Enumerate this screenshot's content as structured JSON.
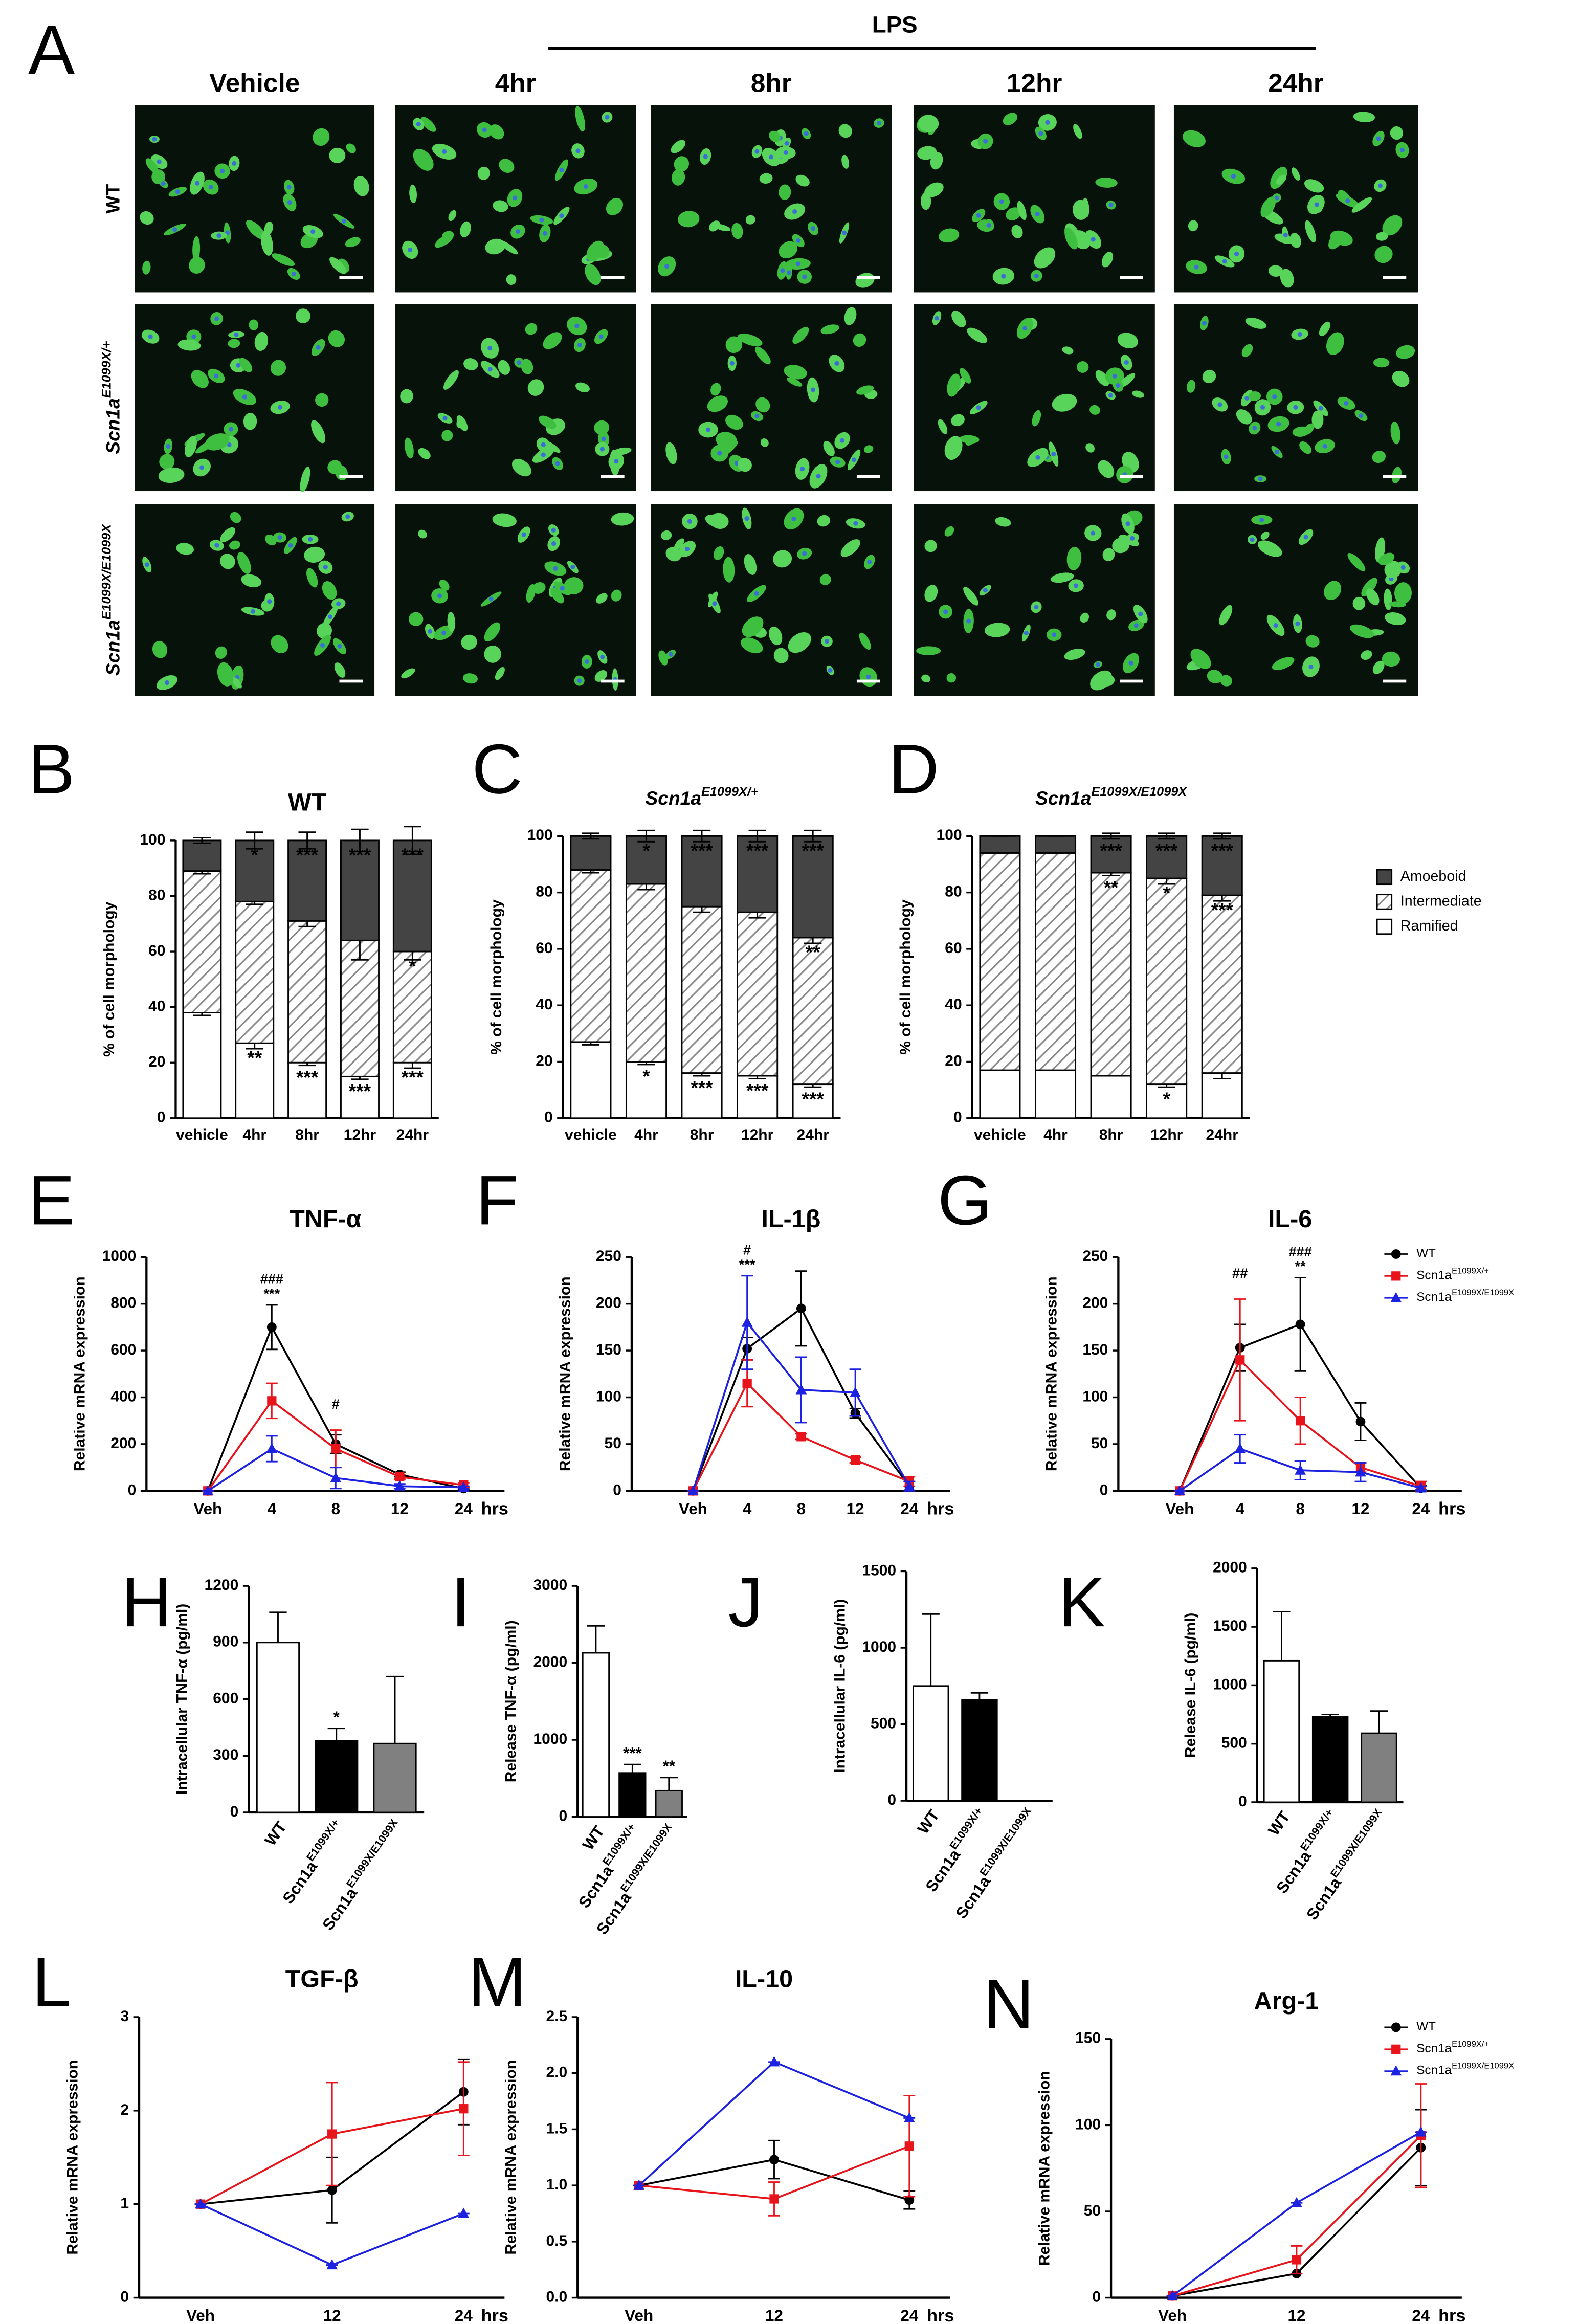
{
  "panel_labels": [
    "A",
    "B",
    "C",
    "D",
    "E",
    "F",
    "G",
    "H",
    "I",
    "J",
    "K",
    "L",
    "M",
    "N"
  ],
  "micrographs": {
    "lps_label": "LPS",
    "columns": [
      "Vehicle",
      "4hr",
      "8hr",
      "12hr",
      "24hr"
    ],
    "rows": [
      {
        "text": "WT"
      },
      {
        "text": "Scn1a",
        "sup": "E1099X/+"
      },
      {
        "text": "Scn1a",
        "sup": "E1099X/E1099X"
      }
    ]
  },
  "chart_data": [
    {
      "type": "stacked_bar",
      "title": "WT",
      "ylabel": "% of cell morphology",
      "categories": [
        "vehicle",
        "4hr",
        "8hr",
        "12hr",
        "24hr"
      ],
      "ylim": [
        0,
        100
      ],
      "yticks": [
        0,
        20,
        40,
        60,
        80,
        100
      ],
      "series": [
        {
          "name": "Ramified",
          "color": "#ffffff",
          "values": [
            38,
            27,
            20,
            15,
            20
          ],
          "errors": [
            1,
            2,
            1,
            1,
            2
          ],
          "annotations": [
            null,
            "**",
            "***",
            "***",
            "***"
          ]
        },
        {
          "name": "Intermediate",
          "color": "#888888",
          "pattern": "hatch",
          "values": [
            51,
            51,
            51,
            49,
            40
          ],
          "errors": [
            1,
            1,
            2,
            7,
            3
          ],
          "annotations": [
            null,
            null,
            null,
            null,
            "*"
          ]
        },
        {
          "name": "Amoeboid",
          "color": "#444444",
          "values": [
            11,
            22,
            29,
            36,
            40
          ],
          "errors": [
            1,
            3,
            3,
            4,
            5
          ],
          "annotations": [
            null,
            "*",
            "***",
            "***",
            "***"
          ]
        }
      ]
    },
    {
      "type": "stacked_bar",
      "title": "Scn1a",
      "title_sup": "E1099X/+",
      "ylabel": "% of cell morphology",
      "categories": [
        "vehicle",
        "4hr",
        "8hr",
        "12hr",
        "24hr"
      ],
      "ylim": [
        0,
        100
      ],
      "yticks": [
        0,
        20,
        40,
        60,
        80,
        100
      ],
      "series": [
        {
          "name": "Ramified",
          "color": "#ffffff",
          "values": [
            27,
            20,
            16,
            15,
            12
          ],
          "errors": [
            1,
            1,
            1,
            1,
            1
          ],
          "annotations": [
            null,
            "*",
            "***",
            "***",
            "***"
          ]
        },
        {
          "name": "Intermediate",
          "color": "#888888",
          "pattern": "hatch",
          "values": [
            61,
            63,
            59,
            58,
            52
          ],
          "errors": [
            1,
            2,
            2,
            2,
            2
          ],
          "annotations": [
            null,
            null,
            null,
            null,
            "**"
          ]
        },
        {
          "name": "Amoeboid",
          "color": "#444444",
          "values": [
            12,
            17,
            25,
            27,
            36
          ],
          "errors": [
            1,
            2,
            2,
            2,
            2
          ],
          "annotations": [
            null,
            "*",
            "***",
            "***",
            "***"
          ]
        }
      ]
    },
    {
      "type": "stacked_bar",
      "title": "Scn1a",
      "title_sup": "E1099X/E1099X",
      "ylabel": "% of cell morphology",
      "categories": [
        "vehicle",
        "4hr",
        "8hr",
        "12hr",
        "24hr"
      ],
      "ylim": [
        0,
        100
      ],
      "yticks": [
        0,
        20,
        40,
        60,
        80,
        100
      ],
      "legend": true,
      "series": [
        {
          "name": "Ramified",
          "color": "#ffffff",
          "values": [
            17,
            17,
            15,
            12,
            16
          ],
          "errors": [
            0,
            0,
            0,
            1,
            2
          ],
          "annotations": [
            null,
            null,
            null,
            "*",
            null
          ]
        },
        {
          "name": "Intermediate",
          "color": "#888888",
          "pattern": "hatch",
          "values": [
            77,
            77,
            72,
            73,
            63
          ],
          "errors": [
            0,
            0,
            1,
            2,
            2
          ],
          "annotations": [
            null,
            null,
            "**",
            "*",
            "***"
          ]
        },
        {
          "name": "Amoeboid",
          "color": "#444444",
          "values": [
            6,
            6,
            13,
            15,
            21
          ],
          "errors": [
            0,
            0,
            1,
            1,
            1
          ],
          "annotations": [
            null,
            null,
            "***",
            "***",
            "***"
          ]
        }
      ]
    },
    {
      "type": "line",
      "title": "TNF-α",
      "ylabel": "Relative mRNA expression",
      "x_label": "hrs",
      "categories": [
        "Veh",
        "4",
        "8",
        "12",
        "24"
      ],
      "ylim": [
        0,
        1000
      ],
      "yticks": [
        0,
        200,
        400,
        600,
        800,
        1000
      ],
      "top_annotations": [
        [
          null,
          "###",
          "#",
          null,
          null
        ],
        [
          null,
          "***",
          null,
          null,
          null
        ]
      ],
      "series": [
        {
          "name": "WT",
          "color": "#000000",
          "marker": "circle",
          "values": [
            0,
            700,
            200,
            70,
            10
          ],
          "errors": [
            0,
            95,
            40,
            10,
            5
          ]
        },
        {
          "name": "Scn1a",
          "name_sup": "E1099X/+",
          "color": "#e8141c",
          "marker": "square",
          "values": [
            0,
            385,
            180,
            60,
            25
          ],
          "errors": [
            0,
            75,
            80,
            10,
            10
          ]
        },
        {
          "name": "Scn1a",
          "name_sup": "E1099X/E1099X",
          "color": "#1c22e0",
          "marker": "triangle",
          "values": [
            0,
            180,
            55,
            20,
            15
          ],
          "errors": [
            0,
            55,
            45,
            10,
            5
          ]
        }
      ]
    },
    {
      "type": "line",
      "title": "IL-1β",
      "ylabel": "Relative mRNA expression",
      "x_label": "hrs",
      "categories": [
        "Veh",
        "4",
        "8",
        "12",
        "24"
      ],
      "ylim": [
        0,
        250
      ],
      "yticks": [
        0,
        50,
        100,
        150,
        200,
        250
      ],
      "top_annotations": [
        [
          null,
          "#",
          null,
          null,
          null
        ],
        [
          null,
          "***",
          null,
          null,
          null
        ]
      ],
      "series": [
        {
          "name": "WT",
          "color": "#000000",
          "marker": "circle",
          "values": [
            0,
            152,
            195,
            83,
            5
          ],
          "errors": [
            0,
            12,
            40,
            5,
            5
          ]
        },
        {
          "name": "Scn1a",
          "name_sup": "E1099X/+",
          "color": "#e8141c",
          "marker": "square",
          "values": [
            0,
            115,
            58,
            33,
            10
          ],
          "errors": [
            0,
            25,
            3,
            3,
            5
          ]
        },
        {
          "name": "Scn1a",
          "name_sup": "E1099X/E1099X",
          "color": "#1c22e0",
          "marker": "triangle",
          "values": [
            0,
            180,
            108,
            105,
            5
          ],
          "errors": [
            0,
            50,
            35,
            25,
            5
          ]
        }
      ]
    },
    {
      "type": "line",
      "title": "IL-6",
      "ylabel": "Relative mRNA expression",
      "x_label": "hrs",
      "categories": [
        "Veh",
        "4",
        "8",
        "12",
        "24"
      ],
      "ylim": [
        0,
        250
      ],
      "yticks": [
        0,
        50,
        100,
        150,
        200,
        250
      ],
      "legend": true,
      "top_annotations": [
        [
          null,
          "##",
          "###",
          null,
          null
        ],
        [
          null,
          null,
          "**",
          null,
          null
        ]
      ],
      "series": [
        {
          "name": "WT",
          "color": "#000000",
          "marker": "circle",
          "values": [
            0,
            153,
            178,
            74,
            3
          ],
          "errors": [
            0,
            25,
            50,
            20,
            3
          ]
        },
        {
          "name": "Scn1a",
          "name_sup": "E1099X/+",
          "color": "#e8141c",
          "marker": "square",
          "values": [
            0,
            140,
            75,
            25,
            5
          ],
          "errors": [
            0,
            65,
            25,
            5,
            5
          ]
        },
        {
          "name": "Scn1a",
          "name_sup": "E1099X/E1099X",
          "color": "#1c22e0",
          "marker": "triangle",
          "values": [
            0,
            45,
            22,
            20,
            3
          ],
          "errors": [
            0,
            15,
            10,
            10,
            2
          ]
        }
      ]
    },
    {
      "type": "bar",
      "ylabel": "Intracellular TNF-α (pg/ml)",
      "categories": [
        "WT",
        "Scn1a",
        "Scn1a"
      ],
      "category_sups": [
        null,
        "E1099X/+",
        "E1099X/E1099X"
      ],
      "colors": [
        "#ffffff",
        "#000000",
        "#808080"
      ],
      "values": [
        900,
        380,
        365
      ],
      "errors": [
        160,
        65,
        355
      ],
      "annotations": [
        null,
        "*",
        null
      ],
      "ylim": [
        0,
        1200
      ],
      "yticks": [
        0,
        300,
        600,
        900,
        1200
      ]
    },
    {
      "type": "bar",
      "ylabel": "Release TNF-α (pg/ml)",
      "categories": [
        "WT",
        "Scn1a",
        "Scn1a"
      ],
      "category_sups": [
        null,
        "E1099X/+",
        "E1099X/E1099X"
      ],
      "colors": [
        "#ffffff",
        "#000000",
        "#808080"
      ],
      "values": [
        2130,
        570,
        340
      ],
      "errors": [
        350,
        110,
        170
      ],
      "annotations": [
        null,
        "***",
        "**"
      ],
      "ylim": [
        0,
        3000
      ],
      "yticks": [
        0,
        1000,
        2000,
        3000
      ]
    },
    {
      "type": "bar",
      "ylabel": "Intracellular IL-6 (pg/ml)",
      "categories": [
        "WT",
        "Scn1a",
        "Scn1a"
      ],
      "category_sups": [
        null,
        "E1099X/+",
        "E1099X/E1099X"
      ],
      "colors": [
        "#ffffff",
        "#000000",
        "#808080"
      ],
      "values": [
        750,
        660,
        0
      ],
      "errors": [
        470,
        45,
        0
      ],
      "ylim": [
        0,
        1500
      ],
      "yticks": [
        0,
        500,
        1000,
        1500
      ]
    },
    {
      "type": "bar",
      "ylabel": "Release IL-6 (pg/ml)",
      "categories": [
        "WT",
        "Scn1a",
        "Scn1a"
      ],
      "category_sups": [
        null,
        "E1099X/+",
        "E1099X/E1099X"
      ],
      "colors": [
        "#ffffff",
        "#000000",
        "#808080"
      ],
      "values": [
        1210,
        730,
        590
      ],
      "errors": [
        420,
        20,
        190
      ],
      "ylim": [
        0,
        2000
      ],
      "yticks": [
        0,
        500,
        1000,
        1500,
        2000
      ]
    },
    {
      "type": "line",
      "title": "TGF-β",
      "ylabel": "Relative mRNA expression",
      "x_label": "hrs",
      "categories": [
        "Veh",
        "12",
        "24"
      ],
      "ylim": [
        0,
        3
      ],
      "yticks": [
        0,
        1,
        2,
        3
      ],
      "series": [
        {
          "name": "WT",
          "color": "#000000",
          "marker": "circle",
          "values": [
            1,
            1.15,
            2.2
          ],
          "errors": [
            0,
            0.35,
            0.35
          ]
        },
        {
          "name": "Scn1a",
          "name_sup": "E1099X/+",
          "color": "#e8141c",
          "marker": "square",
          "values": [
            1,
            1.75,
            2.02
          ],
          "errors": [
            0,
            0.55,
            0.5
          ]
        },
        {
          "name": "Scn1a",
          "name_sup": "E1099X/E1099X",
          "color": "#1c22e0",
          "marker": "triangle",
          "values": [
            1,
            0.35,
            0.9
          ],
          "errors": [
            0,
            0,
            0
          ]
        }
      ]
    },
    {
      "type": "line",
      "title": "IL-10",
      "ylabel": "Relative mRNA expression",
      "x_label": "hrs",
      "categories": [
        "Veh",
        "12",
        "24"
      ],
      "ylim": [
        0,
        2.5
      ],
      "yticks": [
        {
          "value": 0,
          "label": "0.0"
        },
        0.5,
        {
          "value": 1,
          "label": "1.0"
        },
        1.5,
        {
          "value": 2,
          "label": "2.0"
        },
        2.5
      ],
      "series": [
        {
          "name": "WT",
          "color": "#000000",
          "marker": "circle",
          "values": [
            1,
            1.23,
            0.87
          ],
          "errors": [
            0,
            0.17,
            0.08
          ]
        },
        {
          "name": "Scn1a",
          "name_sup": "E1099X/+",
          "color": "#e8141c",
          "marker": "square",
          "values": [
            1,
            0.88,
            1.35
          ],
          "errors": [
            0,
            0.15,
            0.45
          ]
        },
        {
          "name": "Scn1a",
          "name_sup": "E1099X/E1099X",
          "color": "#1c22e0",
          "marker": "triangle",
          "values": [
            1,
            2.1,
            1.6
          ],
          "errors": [
            0,
            0,
            0
          ]
        }
      ]
    },
    {
      "type": "line",
      "title": "Arg-1",
      "ylabel": "Relative mRNA expression",
      "x_label": "hrs",
      "categories": [
        "Veh",
        "12",
        "24"
      ],
      "ylim": [
        0,
        150
      ],
      "yticks": [
        0,
        50,
        100,
        150
      ],
      "legend": true,
      "series": [
        {
          "name": "WT",
          "color": "#000000",
          "marker": "circle",
          "values": [
            1,
            14,
            87
          ],
          "errors": [
            0,
            0,
            22
          ]
        },
        {
          "name": "Scn1a",
          "name_sup": "E1099X/+",
          "color": "#e8141c",
          "marker": "square",
          "values": [
            1,
            22,
            94
          ],
          "errors": [
            0,
            8,
            30
          ]
        },
        {
          "name": "Scn1a",
          "name_sup": "E1099X/E1099X",
          "color": "#1c22e0",
          "marker": "triangle",
          "values": [
            1,
            55,
            96
          ],
          "errors": [
            0,
            0,
            0
          ]
        }
      ]
    }
  ]
}
